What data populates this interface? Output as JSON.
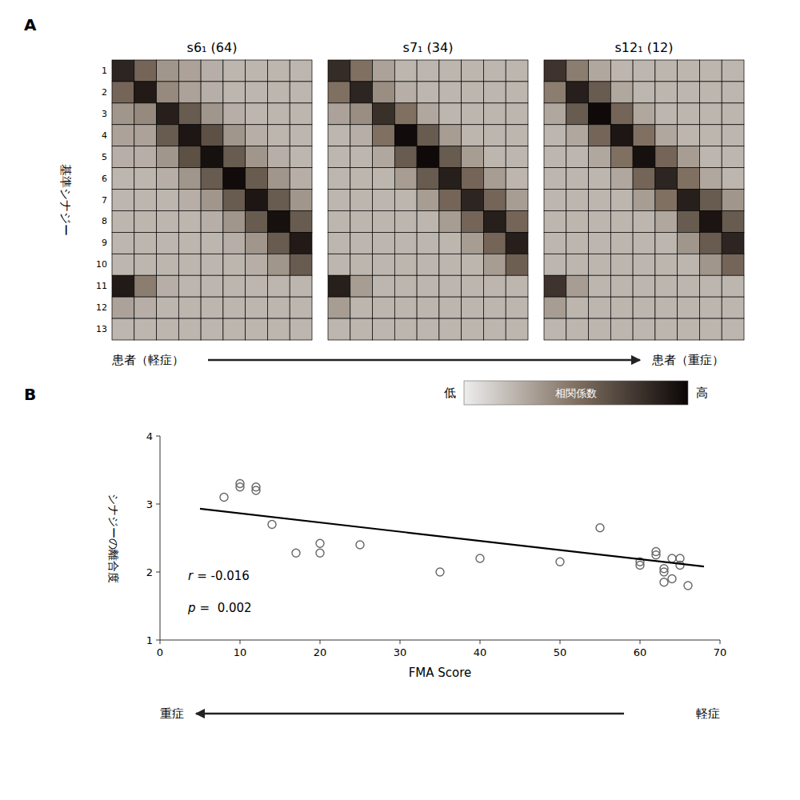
{
  "chart_data": [
    {
      "type": "heatmap",
      "title": "A",
      "y_label": "基準シナジー",
      "categories": [
        "1",
        "2",
        "3",
        "4",
        "5",
        "6",
        "7",
        "8",
        "9",
        "10",
        "11",
        "12",
        "13"
      ],
      "heatmaps": [
        {
          "title": "s6₁ (64)",
          "cells": [
            [
              0.85,
              0.55,
              0.35,
              0.3,
              0.25,
              0.22,
              0.22,
              0.22,
              0.22
            ],
            [
              0.55,
              0.9,
              0.4,
              0.3,
              0.25,
              0.22,
              0.22,
              0.22,
              0.22
            ],
            [
              0.35,
              0.4,
              0.88,
              0.6,
              0.35,
              0.25,
              0.22,
              0.22,
              0.22
            ],
            [
              0.3,
              0.3,
              0.6,
              0.92,
              0.65,
              0.35,
              0.25,
              0.22,
              0.22
            ],
            [
              0.25,
              0.25,
              0.35,
              0.65,
              0.95,
              0.6,
              0.35,
              0.25,
              0.22
            ],
            [
              0.22,
              0.22,
              0.25,
              0.35,
              0.6,
              0.97,
              0.6,
              0.35,
              0.25
            ],
            [
              0.22,
              0.22,
              0.22,
              0.25,
              0.35,
              0.6,
              0.92,
              0.6,
              0.35
            ],
            [
              0.22,
              0.22,
              0.22,
              0.22,
              0.25,
              0.35,
              0.6,
              0.95,
              0.6
            ],
            [
              0.22,
              0.22,
              0.22,
              0.22,
              0.22,
              0.25,
              0.35,
              0.6,
              0.9
            ],
            [
              0.22,
              0.22,
              0.22,
              0.22,
              0.22,
              0.22,
              0.25,
              0.35,
              0.6
            ],
            [
              0.9,
              0.45,
              0.25,
              0.22,
              0.22,
              0.22,
              0.22,
              0.22,
              0.22
            ],
            [
              0.3,
              0.25,
              0.22,
              0.22,
              0.22,
              0.22,
              0.22,
              0.22,
              0.22
            ],
            [
              0.22,
              0.22,
              0.22,
              0.22,
              0.22,
              0.22,
              0.22,
              0.22,
              0.22
            ]
          ]
        },
        {
          "title": "s7₁ (34)",
          "cells": [
            [
              0.82,
              0.5,
              0.3,
              0.22,
              0.22,
              0.22,
              0.22,
              0.22,
              0.22
            ],
            [
              0.5,
              0.85,
              0.38,
              0.25,
              0.22,
              0.22,
              0.22,
              0.22,
              0.22
            ],
            [
              0.3,
              0.38,
              0.8,
              0.5,
              0.28,
              0.22,
              0.22,
              0.22,
              0.22
            ],
            [
              0.22,
              0.25,
              0.5,
              0.97,
              0.6,
              0.32,
              0.22,
              0.22,
              0.22
            ],
            [
              0.22,
              0.22,
              0.28,
              0.6,
              0.98,
              0.6,
              0.32,
              0.22,
              0.22
            ],
            [
              0.22,
              0.22,
              0.22,
              0.32,
              0.6,
              0.88,
              0.55,
              0.32,
              0.22
            ],
            [
              0.22,
              0.22,
              0.22,
              0.22,
              0.32,
              0.55,
              0.85,
              0.55,
              0.32
            ],
            [
              0.22,
              0.22,
              0.22,
              0.22,
              0.22,
              0.32,
              0.55,
              0.88,
              0.55
            ],
            [
              0.22,
              0.22,
              0.22,
              0.22,
              0.22,
              0.22,
              0.32,
              0.55,
              0.88
            ],
            [
              0.22,
              0.22,
              0.22,
              0.22,
              0.22,
              0.22,
              0.22,
              0.32,
              0.58
            ],
            [
              0.88,
              0.32,
              0.22,
              0.22,
              0.22,
              0.22,
              0.22,
              0.22,
              0.22
            ],
            [
              0.32,
              0.22,
              0.22,
              0.22,
              0.22,
              0.22,
              0.22,
              0.22,
              0.22
            ],
            [
              0.22,
              0.22,
              0.22,
              0.22,
              0.22,
              0.22,
              0.22,
              0.22,
              0.22
            ]
          ]
        },
        {
          "title": "s12₁ (12)",
          "cells": [
            [
              0.78,
              0.45,
              0.28,
              0.22,
              0.22,
              0.22,
              0.22,
              0.22,
              0.22
            ],
            [
              0.45,
              0.88,
              0.6,
              0.28,
              0.22,
              0.22,
              0.22,
              0.22,
              0.22
            ],
            [
              0.28,
              0.6,
              0.98,
              0.55,
              0.28,
              0.22,
              0.22,
              0.22,
              0.22
            ],
            [
              0.22,
              0.28,
              0.55,
              0.92,
              0.5,
              0.28,
              0.22,
              0.22,
              0.22
            ],
            [
              0.22,
              0.22,
              0.28,
              0.5,
              0.95,
              0.55,
              0.32,
              0.22,
              0.22
            ],
            [
              0.22,
              0.22,
              0.22,
              0.28,
              0.55,
              0.85,
              0.5,
              0.28,
              0.22
            ],
            [
              0.22,
              0.22,
              0.22,
              0.22,
              0.32,
              0.5,
              0.88,
              0.6,
              0.35
            ],
            [
              0.22,
              0.22,
              0.22,
              0.22,
              0.22,
              0.28,
              0.6,
              0.93,
              0.6
            ],
            [
              0.22,
              0.22,
              0.22,
              0.22,
              0.22,
              0.22,
              0.35,
              0.6,
              0.85
            ],
            [
              0.22,
              0.22,
              0.22,
              0.22,
              0.22,
              0.22,
              0.22,
              0.35,
              0.55
            ],
            [
              0.78,
              0.32,
              0.22,
              0.22,
              0.22,
              0.22,
              0.22,
              0.22,
              0.22
            ],
            [
              0.32,
              0.22,
              0.22,
              0.22,
              0.22,
              0.22,
              0.22,
              0.22,
              0.22
            ],
            [
              0.22,
              0.22,
              0.22,
              0.22,
              0.22,
              0.22,
              0.22,
              0.22,
              0.22
            ]
          ]
        }
      ],
      "colormap": [
        "#ededed",
        "#807061",
        "#0a0505"
      ],
      "color_range": [
        0,
        1
      ],
      "colorbar_low": "低",
      "colorbar_high": "高",
      "colorbar_label": "相関係数",
      "arrow_labels": [
        "患者（軽症）",
        "患者（重症）"
      ]
    },
    {
      "type": "scatter",
      "title": "B",
      "x": [
        8,
        10,
        10,
        12,
        12,
        14,
        17,
        20,
        20,
        25,
        35,
        40,
        50,
        55,
        60,
        60,
        62,
        62,
        63,
        63,
        63,
        64,
        64,
        65,
        65,
        66
      ],
      "values": [
        3.1,
        3.25,
        3.3,
        3.25,
        3.2,
        2.7,
        2.28,
        2.28,
        2.42,
        2.4,
        2.0,
        2.2,
        2.15,
        2.65,
        2.15,
        2.1,
        2.25,
        2.3,
        2.05,
        2.0,
        1.85,
        1.9,
        2.2,
        2.1,
        2.2,
        1.8
      ],
      "color": "#666666",
      "marker": "open-circle",
      "regression_line": {
        "x": [
          5,
          68
        ],
        "values": [
          2.93,
          2.08
        ],
        "color": "#000000"
      },
      "x_label": "FMA Score",
      "y_label": "シナジーの離合度",
      "xlim": [
        0,
        70
      ],
      "ylim": [
        1,
        4
      ],
      "xticks": [
        0,
        10,
        20,
        30,
        40,
        50,
        60,
        70
      ],
      "yticks": [
        1,
        2,
        3,
        4
      ],
      "grid": false,
      "annotations": [
        {
          "symbol": "r",
          "text": "= -0.016"
        },
        {
          "symbol": "p",
          "text": "=  0.002"
        }
      ],
      "arrow_labels": [
        "重症",
        "軽症"
      ]
    }
  ]
}
